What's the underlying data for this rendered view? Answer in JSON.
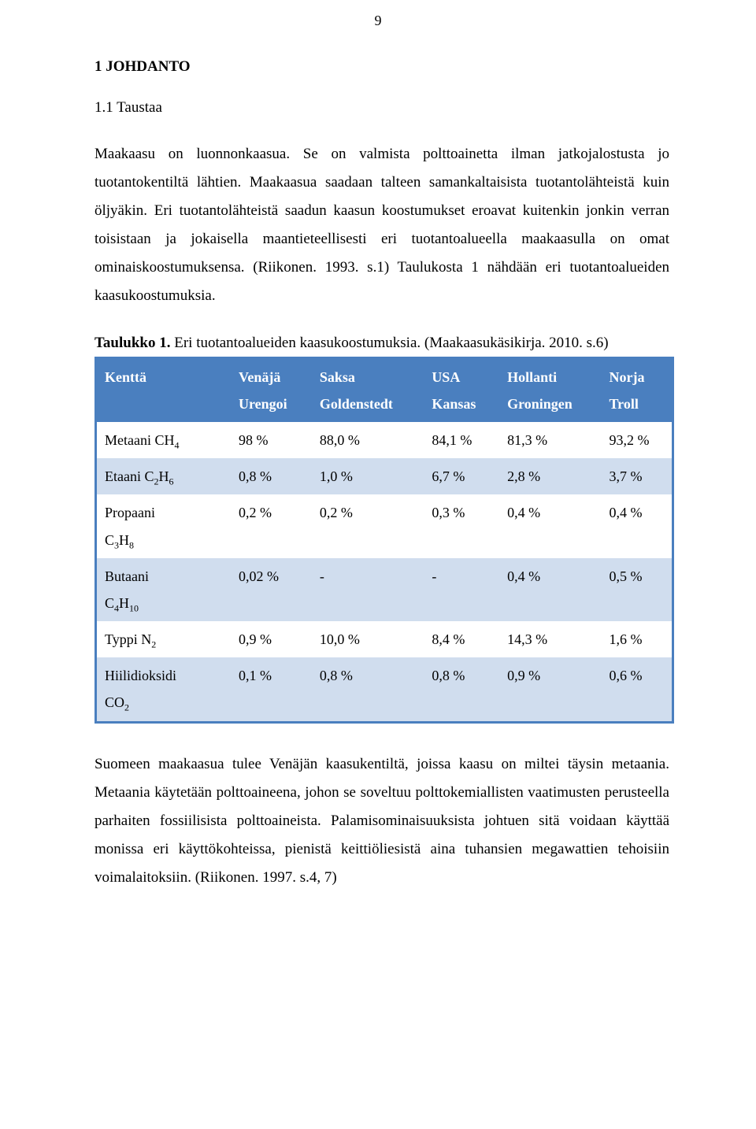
{
  "page_number": "9",
  "headings": {
    "h1": "1   JOHDANTO",
    "h2": "1.1   Taustaa"
  },
  "paragraphs": {
    "p1": "Maakaasu on luonnonkaasua. Se on valmista polttoainetta ilman jatkojalostusta jo tuotantokentiltä lähtien. Maakaasua saadaan talteen samankaltaisista tuotantolähteistä kuin öljyäkin. Eri tuotantolähteistä saadun kaasun koostumukset eroavat kuitenkin jonkin verran toisistaan ja jokaisella maantieteellisesti eri tuotantoalueella maakaasulla on omat ominaiskoostumuksensa. (Riikonen. 1993. s.1) Taulukosta 1 nähdään eri tuotantoalueiden kaasukoostumuksia.",
    "p2": "Suomeen maakaasua tulee Venäjän kaasukentiltä, joissa kaasu on miltei täysin metaania. Metaania käytetään polttoaineena, johon se soveltuu polttokemiallisten vaatimusten perusteella parhaiten fossiilisista polttoaineista. Palamisominaisuuksista johtuen sitä voidaan käyttää monissa eri käyttökohteissa, pienistä keittiöliesistä aina tuhansien megawattien tehoisiin voimalaitoksiin. (Riikonen. 1997. s.4, 7)"
  },
  "table_caption": {
    "bold": "Taulukko 1.",
    "rest": " Eri tuotantoalueiden kaasukoostumuksia. (Maakaasukäsikirja. 2010. s.6)"
  },
  "table": {
    "header_bg": "#4a7fbf",
    "header_fg": "#ffffff",
    "row_alt_bg": "#d0ddee",
    "border_color": "#4a7fbf",
    "columns": [
      {
        "top": "Kenttä",
        "bottom": ""
      },
      {
        "top": "Venäjä",
        "bottom": "Urengoi"
      },
      {
        "top": "Saksa",
        "bottom": "Goldenstedt"
      },
      {
        "top": "USA",
        "bottom": "Kansas"
      },
      {
        "top": "Hollanti",
        "bottom": "Groningen"
      },
      {
        "top": "Norja",
        "bottom": "Troll"
      }
    ],
    "rows": [
      {
        "label": "Metaani",
        "formula_html": "CH<span class=\"sub\">4</span>",
        "formula_inline": true,
        "v": [
          "98 %",
          "88,0 %",
          "84,1 %",
          "81,3 %",
          "93,2 %"
        ]
      },
      {
        "label": "Etaani",
        "formula_html": "C<span class=\"sub\">2</span>H<span class=\"sub\">6</span>",
        "formula_inline": true,
        "v": [
          "0,8 %",
          "1,0 %",
          "6,7 %",
          "2,8 %",
          "3,7 %"
        ]
      },
      {
        "label": "Propaani",
        "formula_html": "C<span class=\"sub\">3</span>H<span class=\"sub\">8</span>",
        "formula_inline": false,
        "v": [
          "0,2 %",
          "0,2 %",
          "0,3 %",
          "0,4 %",
          "0,4 %"
        ]
      },
      {
        "label": "Butaani",
        "formula_html": "C<span class=\"sub\">4</span>H<span class=\"sub\">10</span>",
        "formula_inline": false,
        "v": [
          "0,02 %",
          "-",
          "-",
          "0,4 %",
          "0,5 %"
        ]
      },
      {
        "label": "Typpi",
        "formula_html": "N<span class=\"sub\">2</span>",
        "formula_inline": true,
        "v": [
          "0,9 %",
          "10,0 %",
          "8,4 %",
          "14,3 %",
          "1,6 %"
        ]
      },
      {
        "label": "Hiilidioksidi",
        "formula_html": "CO<span class=\"sub\">2</span>",
        "formula_inline": false,
        "v": [
          "0,1 %",
          "0,8 %",
          "0,8 %",
          "0,9 %",
          "0,6 %"
        ]
      }
    ]
  }
}
